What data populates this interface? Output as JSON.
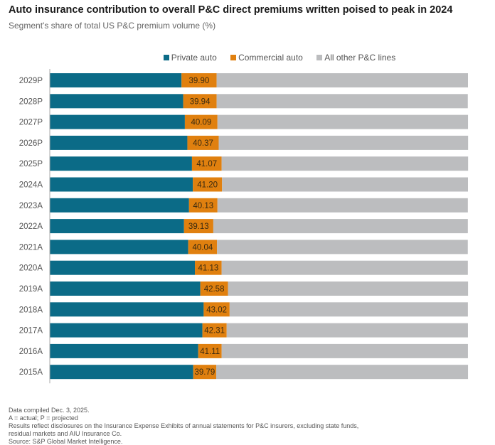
{
  "chart_data": {
    "type": "bar",
    "orientation": "horizontal",
    "stacked": true,
    "title": "Auto insurance contribution to overall P&C direct premiums written poised to peak in 2024",
    "subtitle": "Segment's share of total US P&C premium volume (%)",
    "categories": [
      "2029P",
      "2028P",
      "2027P",
      "2026P",
      "2025P",
      "2024A",
      "2023A",
      "2022A",
      "2021A",
      "2020A",
      "2019A",
      "2018A",
      "2017A",
      "2016A",
      "2015A"
    ],
    "series": [
      {
        "name": "Private auto",
        "color": "#0b6b87",
        "values": [
          31.5,
          31.9,
          32.3,
          32.9,
          34.0,
          34.2,
          33.3,
          32.1,
          33.1,
          34.7,
          36.0,
          36.8,
          36.5,
          35.5,
          34.3
        ]
      },
      {
        "name": "Commercial auto",
        "color": "#e0800f",
        "values": [
          8.4,
          8.0,
          7.8,
          7.5,
          7.1,
          7.0,
          6.8,
          7.0,
          6.9,
          6.4,
          6.6,
          6.2,
          5.8,
          5.6,
          5.5
        ]
      },
      {
        "name": "All other P&C lines",
        "color": "#bcbdbf",
        "values": [
          60.1,
          60.06,
          59.91,
          59.63,
          58.93,
          58.8,
          59.87,
          60.87,
          59.96,
          58.87,
          57.42,
          56.98,
          57.69,
          58.89,
          60.21
        ]
      }
    ],
    "data_labels": [
      "39.90",
      "39.94",
      "40.09",
      "40.37",
      "41.07",
      "41.20",
      "40.13",
      "39.13",
      "40.04",
      "41.13",
      "42.58",
      "43.02",
      "42.31",
      "41.11",
      "39.79"
    ],
    "xlim": [
      0,
      100
    ],
    "grid": false,
    "legend": "top"
  },
  "footnotes": [
    "Data compiled Dec. 3, 2025.",
    "A = actual; P = projected",
    "Results reflect disclosures on the Insurance Expense Exhibits of annual statements for P&C insurers, excluding state funds,",
    "residual markets and AIU Insurance Co.",
    "Source: S&P Global Market Intelligence."
  ]
}
